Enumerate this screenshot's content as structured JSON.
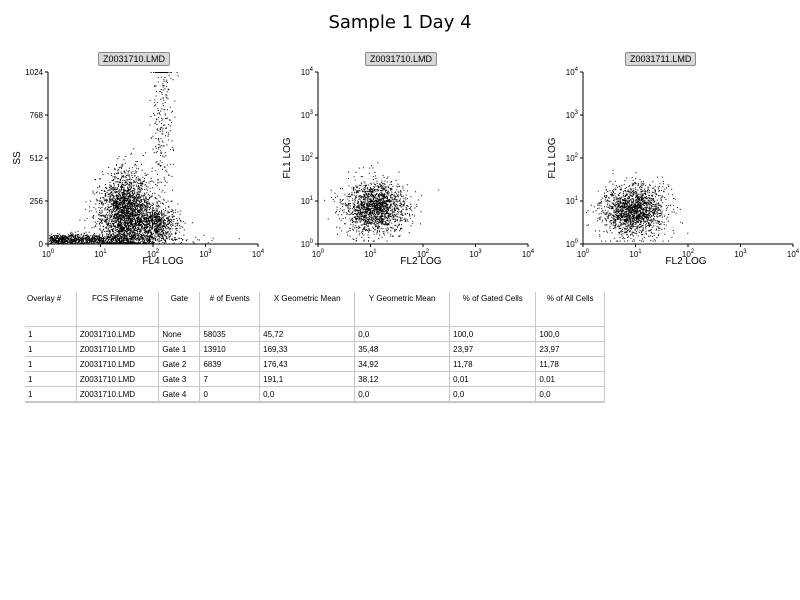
{
  "page_title": "Sample 1 Day 4",
  "chart_data": [
    {
      "type": "scatter",
      "file_tab": "Z0031710.LMD",
      "xlabel": "FL4 LOG",
      "ylabel": "SS",
      "x_scale": "log",
      "x_ticks": [
        "10^0",
        "10^1",
        "10^2",
        "10^3",
        "10^4"
      ],
      "xlim": [
        1,
        10000
      ],
      "y_scale": "linear",
      "y_ticks": [
        "0",
        "256",
        "512",
        "768",
        "1024"
      ],
      "ylim": [
        0,
        1024
      ],
      "clusters": [
        {
          "x_center": 1.8,
          "y_center": 30,
          "x_spread_decades": 0.9,
          "y_spread": 18,
          "density": "high"
        },
        {
          "x_center": 30,
          "y_center": 180,
          "x_spread_decades": 0.25,
          "y_spread": 120,
          "density": "very high"
        },
        {
          "x_center": 120,
          "y_center": 120,
          "x_spread_decades": 0.2,
          "y_spread": 60,
          "density": "medium"
        },
        {
          "x_center": 150,
          "y_center": 700,
          "x_spread_decades": 0.1,
          "y_spread": 300,
          "density": "low"
        }
      ]
    },
    {
      "type": "scatter",
      "file_tab": "Z0031710.LMD",
      "xlabel": "FL2 LOG",
      "ylabel": "FL1 LOG",
      "x_scale": "log",
      "x_ticks": [
        "10^0",
        "10^1",
        "10^2",
        "10^3",
        "10^4"
      ],
      "xlim": [
        1,
        10000
      ],
      "y_scale": "log",
      "y_ticks": [
        "10^0",
        "10^1",
        "10^2",
        "10^3",
        "10^4"
      ],
      "ylim": [
        1,
        10000
      ],
      "clusters": [
        {
          "x_center": 12,
          "y_center": 7,
          "x_spread_decades": 0.3,
          "y_spread_decades": 0.3,
          "density": "high"
        }
      ]
    },
    {
      "type": "scatter",
      "file_tab": "Z0031711.LMD",
      "xlabel": "FL2 LOG",
      "ylabel": "FL1 LOG",
      "x_scale": "log",
      "x_ticks": [
        "10^0",
        "10^1",
        "10^2",
        "10^3",
        "10^4"
      ],
      "xlim": [
        1,
        10000
      ],
      "y_scale": "log",
      "y_ticks": [
        "10^0",
        "10^1",
        "10^2",
        "10^3",
        "10^4"
      ],
      "ylim": [
        1,
        10000
      ],
      "clusters": [
        {
          "x_center": 9,
          "y_center": 6,
          "x_spread_decades": 0.3,
          "y_spread_decades": 0.3,
          "density": "high"
        }
      ]
    }
  ],
  "stats_table": {
    "headers": [
      "Overlay #",
      "FCS Filename",
      "Gate",
      "# of Events",
      "X Geometric Mean",
      "Y Geometric Mean",
      "% of Gated Cells",
      "% of All Cells"
    ],
    "rows": [
      [
        "1",
        "Z0031710.LMD",
        "None",
        "58035",
        "45,72",
        "0,0",
        "100,0",
        "100,0"
      ],
      [
        "1",
        "Z0031710.LMD",
        "Gate 1",
        "13910",
        "169,33",
        "35,48",
        "23,97",
        "23,97"
      ],
      [
        "1",
        "Z0031710.LMD",
        "Gate 2",
        "6839",
        "176,43",
        "34,92",
        "11,78",
        "11,78"
      ],
      [
        "1",
        "Z0031710.LMD",
        "Gate 3",
        "7",
        "191,1",
        "38,12",
        "0,01",
        "0,01"
      ],
      [
        "1",
        "Z0031710.LMD",
        "Gate 4",
        "0",
        "0,0",
        "0,0",
        "0,0",
        "0,0"
      ]
    ]
  }
}
